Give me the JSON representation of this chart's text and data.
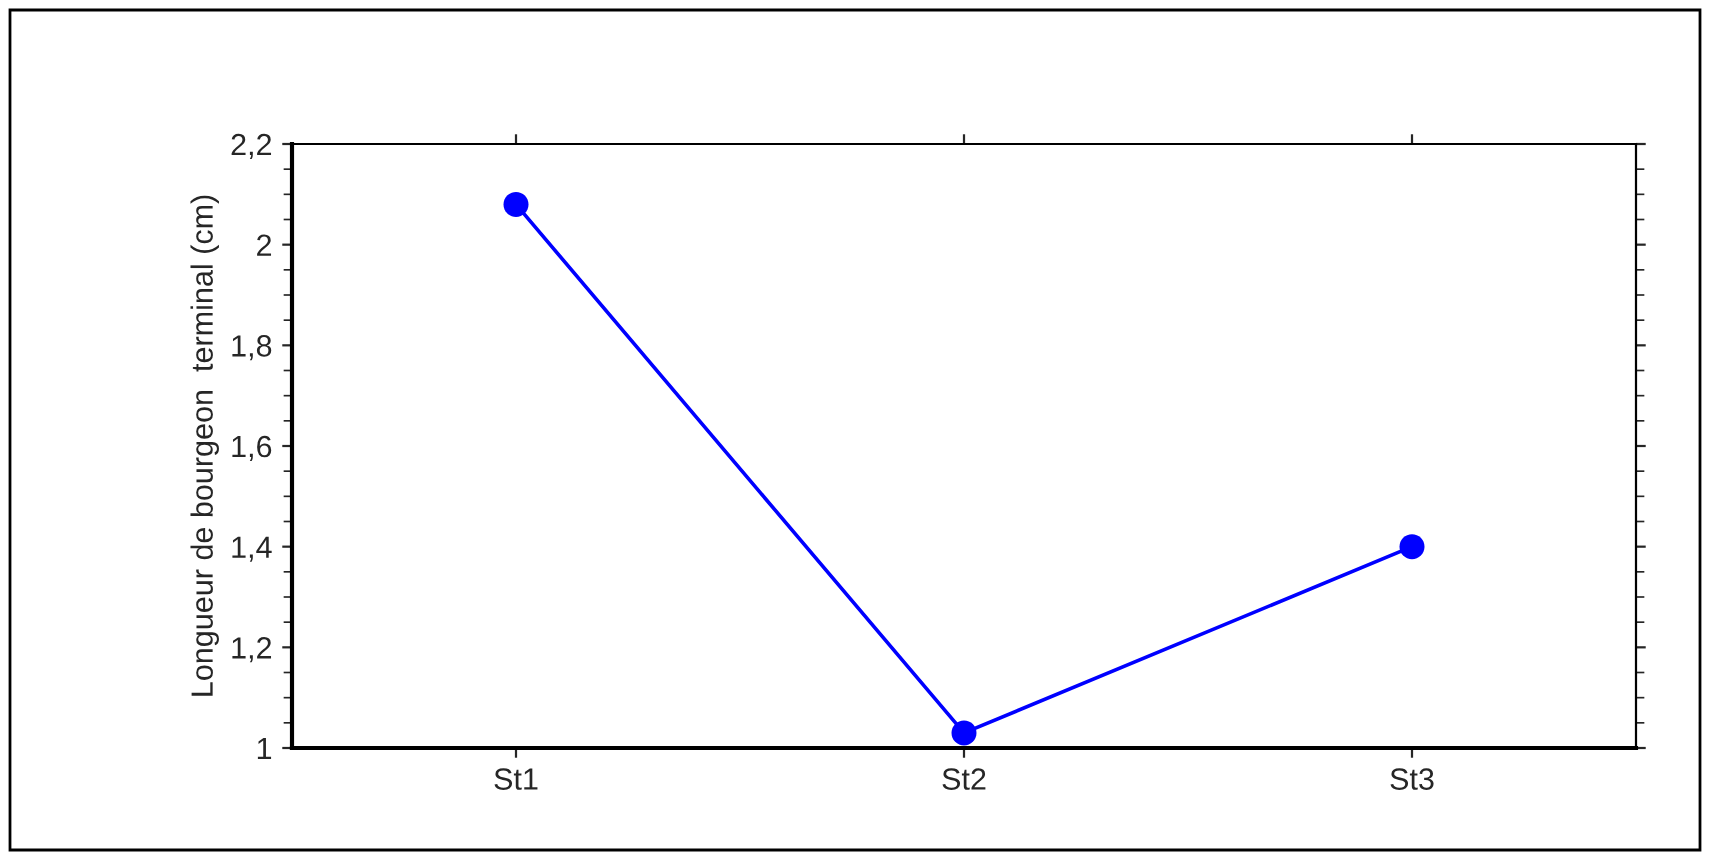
{
  "chart_data": {
    "type": "line",
    "ylabel": "Longueur de bourgeon  terminal (cm)",
    "categories": [
      "St1",
      "St2",
      "St3"
    ],
    "series": [
      {
        "color": "#0000ff",
        "values": [
          2.08,
          1.03,
          1.4
        ]
      }
    ],
    "ylim": [
      1,
      2.2
    ],
    "yticks": [
      1,
      {
        "value": 1.2,
        "label": "1,2"
      },
      {
        "value": 1.4,
        "label": "1,4"
      },
      {
        "value": 1.6,
        "label": "1,6"
      },
      {
        "value": 1.8,
        "label": "1,8"
      },
      2,
      {
        "value": 2.2,
        "label": "2,2"
      }
    ],
    "marker": "circle",
    "line_style": "solid"
  }
}
